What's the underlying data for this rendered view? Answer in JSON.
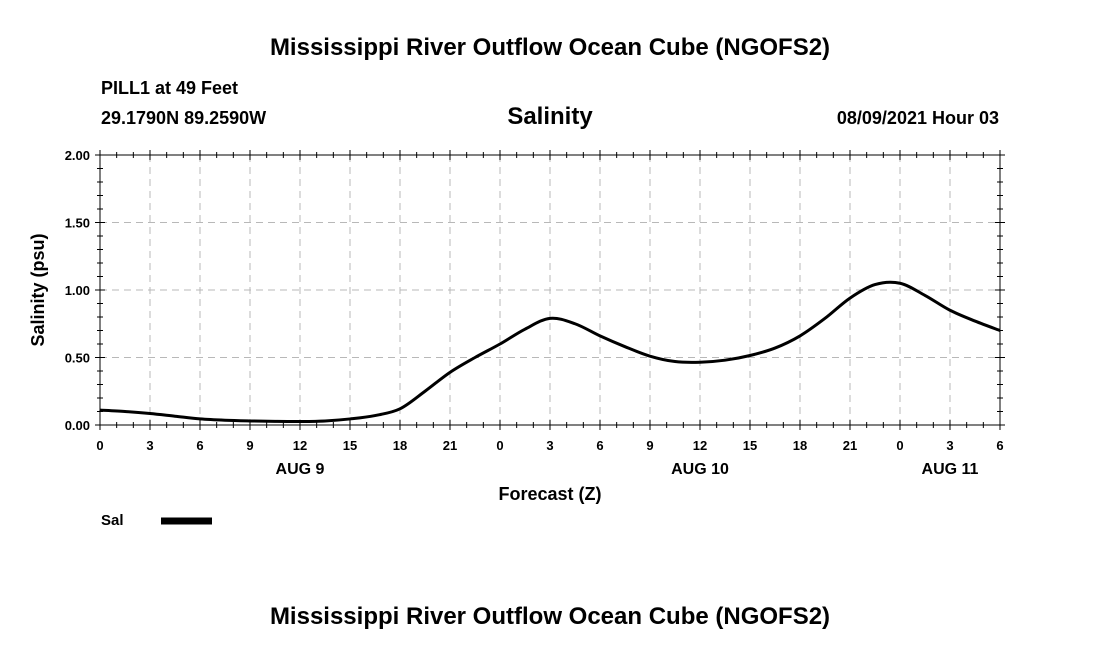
{
  "chart_data": {
    "type": "line",
    "title": "Mississippi River Outflow Ocean Cube (NGOFS2)",
    "footer_title": "Mississippi River Outflow Ocean Cube (NGOFS2)",
    "station": "PILL1 at 49 Feet",
    "coordinates": "29.1790N  89.2590W",
    "subtitle": "Salinity",
    "run_time": "08/09/2021 Hour 03",
    "xlabel": "Forecast (Z)",
    "ylabel": "Salinity (psu)",
    "ylim": [
      0,
      2
    ],
    "xlim": [
      0,
      54
    ],
    "y_ticks": [
      0,
      0.5,
      1.0,
      1.5,
      2.0
    ],
    "y_tick_labels": [
      "0.00",
      "0.50",
      "1.00",
      "1.50",
      "2.00"
    ],
    "x_ticks": [
      0,
      3,
      6,
      9,
      12,
      15,
      18,
      21,
      24,
      27,
      30,
      33,
      36,
      39,
      42,
      45,
      48,
      51,
      54
    ],
    "x_tick_labels": [
      "0",
      "3",
      "6",
      "9",
      "12",
      "15",
      "18",
      "21",
      "0",
      "3",
      "6",
      "9",
      "12",
      "15",
      "18",
      "21",
      "0",
      "3",
      "6"
    ],
    "date_labels": [
      {
        "x": 12,
        "label": "AUG 9"
      },
      {
        "x": 36,
        "label": "AUG 10"
      },
      {
        "x": 51,
        "label": "AUG 11"
      }
    ],
    "grid": true,
    "legend_position": "bottom-left",
    "series": [
      {
        "name": "Sal",
        "color": "#000000",
        "x": [
          0,
          1.5,
          3,
          4.5,
          6,
          7.5,
          9,
          10.5,
          12,
          13.5,
          15,
          16.5,
          18,
          19.5,
          21,
          22.5,
          24,
          25.5,
          27,
          28.5,
          30,
          31.5,
          33,
          34.5,
          36,
          37.5,
          39,
          40.5,
          42,
          43.5,
          45,
          46.5,
          48,
          49.5,
          51,
          52.5,
          54
        ],
        "values": [
          0.11,
          0.1,
          0.085,
          0.065,
          0.045,
          0.035,
          0.03,
          0.027,
          0.026,
          0.03,
          0.045,
          0.07,
          0.12,
          0.25,
          0.39,
          0.5,
          0.6,
          0.71,
          0.79,
          0.75,
          0.66,
          0.58,
          0.51,
          0.47,
          0.465,
          0.48,
          0.515,
          0.57,
          0.66,
          0.79,
          0.94,
          1.04,
          1.05,
          0.96,
          0.85,
          0.77,
          0.7
        ]
      }
    ]
  }
}
